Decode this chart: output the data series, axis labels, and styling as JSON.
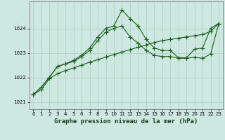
{
  "title": "Graphe pression niveau de la mer (hPa)",
  "bg_color": "#cce8e0",
  "line_color": "#1a5c1a",
  "grid_color": "#aaccbb",
  "ylim": [
    1020.7,
    1025.1
  ],
  "xlim": [
    -0.5,
    23.5
  ],
  "yticks": [
    1021,
    1022,
    1023,
    1024
  ],
  "xticks": [
    0,
    1,
    2,
    3,
    4,
    5,
    6,
    7,
    8,
    9,
    10,
    11,
    12,
    13,
    14,
    15,
    16,
    17,
    18,
    19,
    20,
    21,
    22,
    23
  ],
  "line1_x": [
    0,
    1,
    2,
    3,
    4,
    5,
    6,
    7,
    8,
    9,
    10,
    11,
    12,
    13,
    14,
    15,
    16,
    17,
    18,
    19,
    20,
    21,
    22,
    23
  ],
  "line1_y": [
    1021.3,
    1021.6,
    1022.0,
    1022.45,
    1022.55,
    1022.7,
    1022.9,
    1023.2,
    1023.65,
    1024.0,
    1024.1,
    1024.75,
    1024.4,
    1024.1,
    1023.55,
    1023.2,
    1023.1,
    1023.1,
    1022.8,
    1022.8,
    1023.15,
    1023.2,
    1024.0,
    1024.2
  ],
  "line2_x": [
    0,
    1,
    2,
    3,
    4,
    5,
    6,
    7,
    8,
    9,
    10,
    11,
    12,
    13,
    14,
    15,
    16,
    17,
    18,
    19,
    20,
    21,
    22,
    23
  ],
  "line2_y": [
    1021.3,
    1021.6,
    1022.0,
    1022.45,
    1022.55,
    1022.65,
    1022.85,
    1023.1,
    1023.5,
    1023.85,
    1024.0,
    1024.1,
    1023.65,
    1023.4,
    1023.1,
    1022.9,
    1022.85,
    1022.85,
    1022.78,
    1022.78,
    1022.82,
    1022.78,
    1022.95,
    1024.2
  ],
  "line3_x": [
    0,
    1,
    2,
    3,
    4,
    5,
    6,
    7,
    8,
    9,
    10,
    11,
    12,
    13,
    14,
    15,
    16,
    17,
    18,
    19,
    20,
    21,
    22,
    23
  ],
  "line3_y": [
    1021.3,
    1021.5,
    1021.95,
    1022.15,
    1022.28,
    1022.38,
    1022.5,
    1022.62,
    1022.72,
    1022.83,
    1022.93,
    1023.03,
    1023.13,
    1023.23,
    1023.33,
    1023.42,
    1023.5,
    1023.55,
    1023.6,
    1023.65,
    1023.7,
    1023.75,
    1023.88,
    1024.2
  ],
  "marker": "+",
  "markersize": 4.0,
  "linewidth": 0.8,
  "title_fontsize": 6.5,
  "tick_fontsize": 5.0,
  "spine_color": "#666666"
}
